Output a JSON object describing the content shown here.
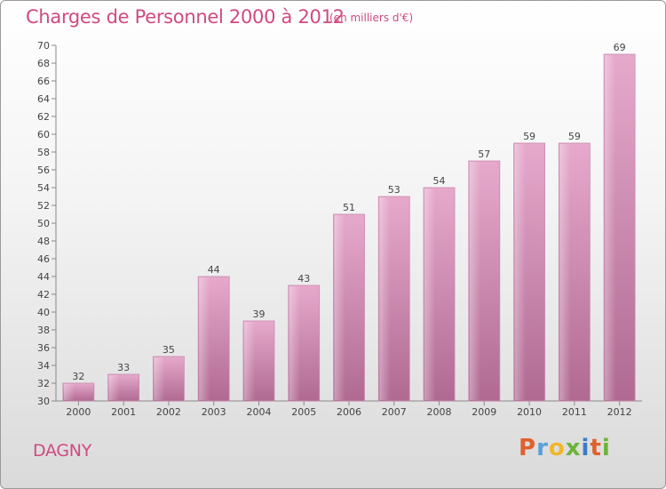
{
  "header": {
    "title": "Charges de Personnel 2000 à 2012",
    "subtitle": "(en milliers d'€)"
  },
  "footer": {
    "commune": "DAGNY",
    "brand": "Proxiti"
  },
  "colors": {
    "title": "#d04a80",
    "bar_light": "#e6a9cc",
    "bar_dark": "#b06a92",
    "brand_letters": [
      "#e0612d",
      "#5aa0d8",
      "#f0b72a",
      "#6bb33a",
      "#3b7cc4",
      "#e0612d",
      "#6bb33a"
    ]
  },
  "chart_data": {
    "type": "bar",
    "title": "Charges de Personnel 2000 à 2012",
    "subtitle": "(en milliers d'€)",
    "categories": [
      "2000",
      "2001",
      "2002",
      "2003",
      "2004",
      "2005",
      "2006",
      "2007",
      "2008",
      "2009",
      "2010",
      "2011",
      "2012"
    ],
    "values": [
      32,
      33,
      35,
      44,
      39,
      43,
      51,
      53,
      54,
      57,
      59,
      59,
      69
    ],
    "xlabel": "",
    "ylabel": "",
    "ylim": [
      30,
      70
    ],
    "yticks": [
      30,
      32,
      34,
      36,
      38,
      40,
      42,
      44,
      46,
      48,
      50,
      52,
      54,
      56,
      58,
      60,
      62,
      64,
      66,
      68,
      70
    ],
    "grid": false,
    "legend": "none"
  }
}
